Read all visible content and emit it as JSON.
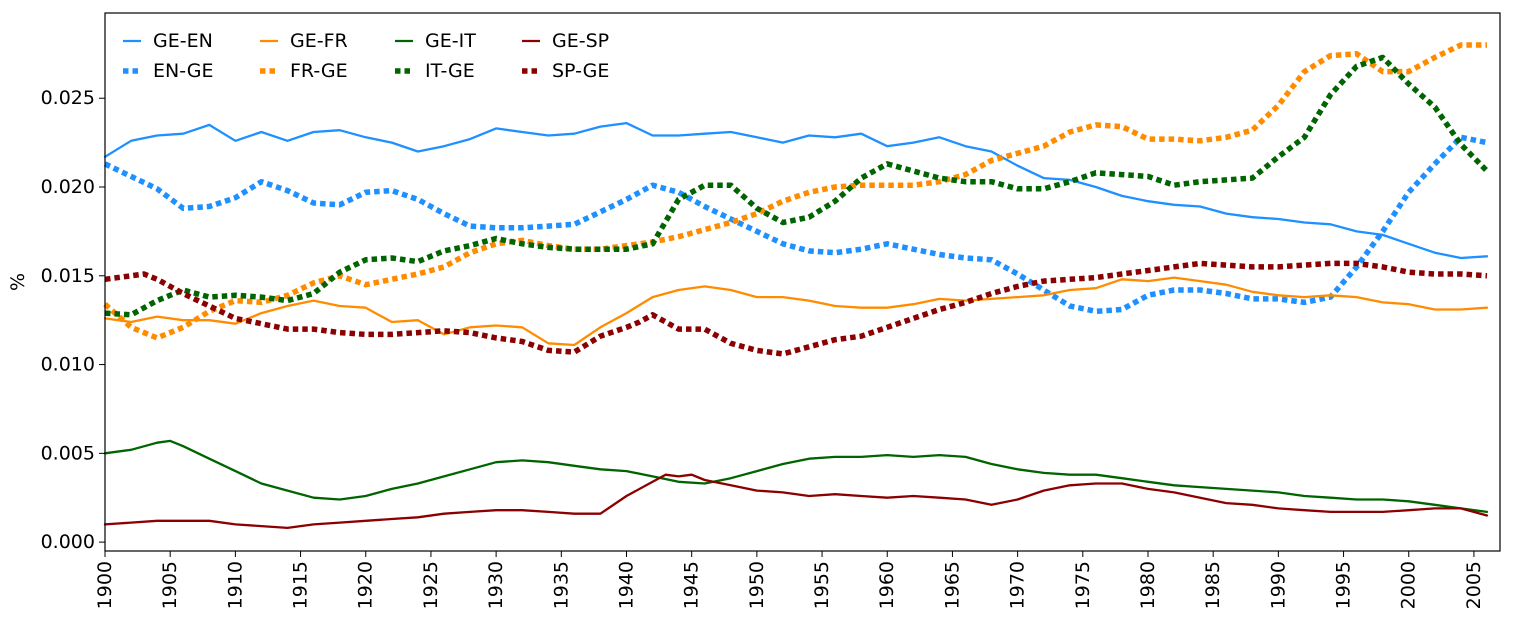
{
  "chart_data": {
    "type": "line",
    "title": "",
    "xlabel": "",
    "ylabel": "%",
    "xlim": [
      1900,
      2007
    ],
    "ylim": [
      -0.0005,
      0.0298
    ],
    "x_ticks": [
      1900,
      1905,
      1910,
      1915,
      1920,
      1925,
      1930,
      1935,
      1940,
      1945,
      1950,
      1955,
      1960,
      1965,
      1970,
      1975,
      1980,
      1985,
      1990,
      1995,
      2000,
      2005
    ],
    "x_tick_labels": [
      "1900",
      "1905",
      "1910",
      "1915",
      "1920",
      "1925",
      "1930",
      "1935",
      "1940",
      "1945",
      "1950",
      "1955",
      "1960",
      "1965",
      "1970",
      "1975",
      "1980",
      "1985",
      "1990",
      "1995",
      "2000",
      "2005"
    ],
    "y_ticks": [
      0.0,
      0.005,
      0.01,
      0.015,
      0.02,
      0.025
    ],
    "y_tick_labels": [
      "0.000",
      "0.005",
      "0.010",
      "0.015",
      "0.020",
      "0.025"
    ],
    "grid": false,
    "legend_position": "top-left",
    "series": [
      {
        "name": "GE-EN",
        "color": "#1e90ff",
        "style": "solid",
        "x": [
          1900,
          1902,
          1904,
          1906,
          1908,
          1910,
          1912,
          1914,
          1916,
          1918,
          1920,
          1922,
          1924,
          1926,
          1928,
          1930,
          1932,
          1934,
          1936,
          1938,
          1940,
          1942,
          1944,
          1946,
          1948,
          1950,
          1952,
          1954,
          1956,
          1958,
          1960,
          1962,
          1964,
          1966,
          1968,
          1970,
          1972,
          1974,
          1976,
          1978,
          1980,
          1982,
          1984,
          1986,
          1988,
          1990,
          1992,
          1994,
          1996,
          1998,
          2000,
          2002,
          2004,
          2006
        ],
        "y": [
          0.0217,
          0.0226,
          0.0229,
          0.023,
          0.0235,
          0.0226,
          0.0231,
          0.0226,
          0.0231,
          0.0232,
          0.0228,
          0.0225,
          0.022,
          0.0223,
          0.0227,
          0.0233,
          0.0231,
          0.0229,
          0.023,
          0.0234,
          0.0236,
          0.0229,
          0.0229,
          0.023,
          0.0231,
          0.0228,
          0.0225,
          0.0229,
          0.0228,
          0.023,
          0.0223,
          0.0225,
          0.0228,
          0.0223,
          0.022,
          0.0212,
          0.0205,
          0.0204,
          0.02,
          0.0195,
          0.0192,
          0.019,
          0.0189,
          0.0185,
          0.0183,
          0.0182,
          0.018,
          0.0179,
          0.0175,
          0.0173,
          0.0168,
          0.0163,
          0.016,
          0.0161
        ]
      },
      {
        "name": "EN-GE",
        "color": "#1e90ff",
        "style": "dotted",
        "x": [
          1900,
          1902,
          1904,
          1906,
          1908,
          1910,
          1912,
          1914,
          1916,
          1918,
          1920,
          1922,
          1924,
          1926,
          1928,
          1930,
          1932,
          1934,
          1936,
          1938,
          1940,
          1942,
          1944,
          1946,
          1948,
          1950,
          1952,
          1954,
          1956,
          1958,
          1960,
          1962,
          1964,
          1966,
          1968,
          1970,
          1972,
          1974,
          1976,
          1978,
          1980,
          1982,
          1984,
          1986,
          1988,
          1990,
          1992,
          1994,
          1996,
          1998,
          2000,
          2002,
          2004,
          2006
        ],
        "y": [
          0.0213,
          0.0206,
          0.0199,
          0.0188,
          0.0189,
          0.0194,
          0.0203,
          0.0198,
          0.0191,
          0.019,
          0.0197,
          0.0198,
          0.0193,
          0.0185,
          0.0178,
          0.0177,
          0.0177,
          0.0178,
          0.0179,
          0.0186,
          0.0193,
          0.0201,
          0.0197,
          0.0189,
          0.0182,
          0.0175,
          0.0168,
          0.0164,
          0.0163,
          0.0165,
          0.0168,
          0.0165,
          0.0162,
          0.016,
          0.0159,
          0.0151,
          0.0142,
          0.0133,
          0.013,
          0.0131,
          0.0139,
          0.0142,
          0.0142,
          0.014,
          0.0137,
          0.0137,
          0.0135,
          0.0138,
          0.0155,
          0.0175,
          0.0197,
          0.0213,
          0.0228,
          0.0225
        ]
      },
      {
        "name": "GE-FR",
        "color": "#ff8c00",
        "style": "solid",
        "x": [
          1900,
          1902,
          1904,
          1906,
          1908,
          1910,
          1912,
          1914,
          1916,
          1918,
          1920,
          1922,
          1924,
          1926,
          1928,
          1930,
          1932,
          1934,
          1936,
          1938,
          1940,
          1942,
          1944,
          1946,
          1948,
          1950,
          1952,
          1954,
          1956,
          1958,
          1960,
          1962,
          1964,
          1966,
          1968,
          1970,
          1972,
          1974,
          1976,
          1978,
          1980,
          1982,
          1984,
          1986,
          1988,
          1990,
          1992,
          1994,
          1996,
          1998,
          2000,
          2002,
          2004,
          2006
        ],
        "y": [
          0.0126,
          0.0124,
          0.0127,
          0.0125,
          0.0125,
          0.0123,
          0.0129,
          0.0133,
          0.0136,
          0.0133,
          0.0132,
          0.0124,
          0.0125,
          0.0117,
          0.0121,
          0.0122,
          0.0121,
          0.0112,
          0.0111,
          0.0121,
          0.0129,
          0.0138,
          0.0142,
          0.0144,
          0.0142,
          0.0138,
          0.0138,
          0.0136,
          0.0133,
          0.0132,
          0.0132,
          0.0134,
          0.0137,
          0.0136,
          0.0137,
          0.0138,
          0.0139,
          0.0142,
          0.0143,
          0.0148,
          0.0147,
          0.0149,
          0.0147,
          0.0145,
          0.0141,
          0.0139,
          0.0138,
          0.0139,
          0.0138,
          0.0135,
          0.0134,
          0.0131,
          0.0131,
          0.0132
        ]
      },
      {
        "name": "FR-GE",
        "color": "#ff8c00",
        "style": "dotted",
        "x": [
          1900,
          1902,
          1904,
          1906,
          1908,
          1910,
          1912,
          1914,
          1916,
          1918,
          1920,
          1922,
          1924,
          1926,
          1928,
          1930,
          1932,
          1934,
          1936,
          1938,
          1940,
          1942,
          1944,
          1946,
          1948,
          1950,
          1952,
          1954,
          1956,
          1958,
          1960,
          1962,
          1964,
          1966,
          1968,
          1970,
          1972,
          1974,
          1976,
          1978,
          1980,
          1982,
          1984,
          1986,
          1988,
          1990,
          1992,
          1994,
          1996,
          1998,
          2000,
          2002,
          2004,
          2006
        ],
        "y": [
          0.0134,
          0.0121,
          0.0115,
          0.0121,
          0.013,
          0.0136,
          0.0135,
          0.0139,
          0.0146,
          0.015,
          0.0145,
          0.0148,
          0.0151,
          0.0155,
          0.0163,
          0.0168,
          0.017,
          0.0167,
          0.0165,
          0.0165,
          0.0167,
          0.0169,
          0.0172,
          0.0176,
          0.018,
          0.0185,
          0.0192,
          0.0197,
          0.02,
          0.0201,
          0.0201,
          0.0201,
          0.0203,
          0.0207,
          0.0215,
          0.0219,
          0.0223,
          0.0231,
          0.0235,
          0.0234,
          0.0227,
          0.0227,
          0.0226,
          0.0228,
          0.0232,
          0.0246,
          0.0265,
          0.0274,
          0.0275,
          0.0265,
          0.0265,
          0.0273,
          0.028,
          0.028
        ]
      },
      {
        "name": "GE-IT",
        "color": "#006400",
        "style": "solid",
        "x": [
          1900,
          1902,
          1904,
          1905,
          1906,
          1908,
          1910,
          1912,
          1914,
          1916,
          1918,
          1920,
          1922,
          1924,
          1926,
          1928,
          1930,
          1932,
          1934,
          1936,
          1938,
          1940,
          1942,
          1944,
          1946,
          1948,
          1950,
          1952,
          1954,
          1956,
          1958,
          1960,
          1962,
          1964,
          1966,
          1968,
          1970,
          1972,
          1974,
          1976,
          1978,
          1980,
          1982,
          1984,
          1986,
          1988,
          1990,
          1992,
          1994,
          1996,
          1998,
          2000,
          2002,
          2004,
          2006
        ],
        "y": [
          0.005,
          0.0052,
          0.0056,
          0.0057,
          0.0054,
          0.0047,
          0.004,
          0.0033,
          0.0029,
          0.0025,
          0.0024,
          0.0026,
          0.003,
          0.0033,
          0.0037,
          0.0041,
          0.0045,
          0.0046,
          0.0045,
          0.0043,
          0.0041,
          0.004,
          0.0037,
          0.0034,
          0.0033,
          0.0036,
          0.004,
          0.0044,
          0.0047,
          0.0048,
          0.0048,
          0.0049,
          0.0048,
          0.0049,
          0.0048,
          0.0044,
          0.0041,
          0.0039,
          0.0038,
          0.0038,
          0.0036,
          0.0034,
          0.0032,
          0.0031,
          0.003,
          0.0029,
          0.0028,
          0.0026,
          0.0025,
          0.0024,
          0.0024,
          0.0023,
          0.0021,
          0.0019,
          0.0017
        ]
      },
      {
        "name": "IT-GE",
        "color": "#006400",
        "style": "dotted",
        "x": [
          1900,
          1902,
          1904,
          1906,
          1908,
          1910,
          1912,
          1914,
          1916,
          1918,
          1920,
          1922,
          1924,
          1926,
          1928,
          1930,
          1932,
          1934,
          1936,
          1938,
          1940,
          1942,
          1944,
          1946,
          1948,
          1950,
          1952,
          1954,
          1956,
          1958,
          1960,
          1962,
          1964,
          1966,
          1968,
          1970,
          1972,
          1974,
          1976,
          1978,
          1980,
          1982,
          1984,
          1986,
          1988,
          1990,
          1992,
          1994,
          1996,
          1998,
          2000,
          2002,
          2004,
          2006
        ],
        "y": [
          0.0129,
          0.0128,
          0.0136,
          0.0142,
          0.0138,
          0.0139,
          0.0138,
          0.0136,
          0.014,
          0.0152,
          0.0159,
          0.016,
          0.0158,
          0.0164,
          0.0167,
          0.0171,
          0.0168,
          0.0166,
          0.0165,
          0.0165,
          0.0165,
          0.0168,
          0.0193,
          0.0201,
          0.0201,
          0.0188,
          0.018,
          0.0183,
          0.0192,
          0.0205,
          0.0213,
          0.0209,
          0.0205,
          0.0203,
          0.0203,
          0.0199,
          0.0199,
          0.0203,
          0.0208,
          0.0207,
          0.0206,
          0.0201,
          0.0203,
          0.0204,
          0.0205,
          0.0217,
          0.0228,
          0.0252,
          0.0268,
          0.0273,
          0.0258,
          0.0245,
          0.0224,
          0.0209
        ]
      },
      {
        "name": "GE-SP",
        "color": "#8b0000",
        "style": "solid",
        "x": [
          1900,
          1902,
          1904,
          1906,
          1908,
          1910,
          1912,
          1914,
          1916,
          1918,
          1920,
          1922,
          1924,
          1926,
          1928,
          1930,
          1932,
          1934,
          1936,
          1938,
          1940,
          1942,
          1943,
          1944,
          1945,
          1946,
          1948,
          1950,
          1952,
          1954,
          1956,
          1958,
          1960,
          1962,
          1964,
          1966,
          1968,
          1970,
          1972,
          1974,
          1976,
          1978,
          1980,
          1982,
          1984,
          1986,
          1988,
          1990,
          1992,
          1994,
          1996,
          1998,
          2000,
          2002,
          2004,
          2006
        ],
        "y": [
          0.001,
          0.0011,
          0.0012,
          0.0012,
          0.0012,
          0.001,
          0.0009,
          0.0008,
          0.001,
          0.0011,
          0.0012,
          0.0013,
          0.0014,
          0.0016,
          0.0017,
          0.0018,
          0.0018,
          0.0017,
          0.0016,
          0.0016,
          0.0026,
          0.0034,
          0.0038,
          0.0037,
          0.0038,
          0.0035,
          0.0032,
          0.0029,
          0.0028,
          0.0026,
          0.0027,
          0.0026,
          0.0025,
          0.0026,
          0.0025,
          0.0024,
          0.0021,
          0.0024,
          0.0029,
          0.0032,
          0.0033,
          0.0033,
          0.003,
          0.0028,
          0.0025,
          0.0022,
          0.0021,
          0.0019,
          0.0018,
          0.0017,
          0.0017,
          0.0017,
          0.0018,
          0.0019,
          0.0019,
          0.0015
        ]
      },
      {
        "name": "SP-GE",
        "color": "#8b0000",
        "style": "dotted",
        "x": [
          1900,
          1902,
          1903,
          1904,
          1906,
          1908,
          1910,
          1912,
          1914,
          1916,
          1918,
          1920,
          1922,
          1924,
          1926,
          1928,
          1930,
          1932,
          1934,
          1936,
          1938,
          1940,
          1941,
          1942,
          1944,
          1946,
          1948,
          1950,
          1952,
          1954,
          1956,
          1958,
          1960,
          1962,
          1964,
          1966,
          1968,
          1970,
          1972,
          1974,
          1976,
          1978,
          1980,
          1982,
          1984,
          1986,
          1988,
          1990,
          1992,
          1994,
          1996,
          1998,
          2000,
          2002,
          2004,
          2006
        ],
        "y": [
          0.0148,
          0.015,
          0.0151,
          0.0148,
          0.014,
          0.0133,
          0.0126,
          0.0123,
          0.012,
          0.012,
          0.0118,
          0.0117,
          0.0117,
          0.0118,
          0.0119,
          0.0118,
          0.0115,
          0.0113,
          0.0108,
          0.0107,
          0.0116,
          0.0121,
          0.0124,
          0.0128,
          0.012,
          0.012,
          0.0112,
          0.0108,
          0.0106,
          0.011,
          0.0114,
          0.0116,
          0.0121,
          0.0126,
          0.0131,
          0.0135,
          0.014,
          0.0144,
          0.0147,
          0.0148,
          0.0149,
          0.0151,
          0.0153,
          0.0155,
          0.0157,
          0.0156,
          0.0155,
          0.0155,
          0.0156,
          0.0157,
          0.0157,
          0.0155,
          0.0152,
          0.0151,
          0.0151,
          0.015
        ]
      }
    ]
  }
}
